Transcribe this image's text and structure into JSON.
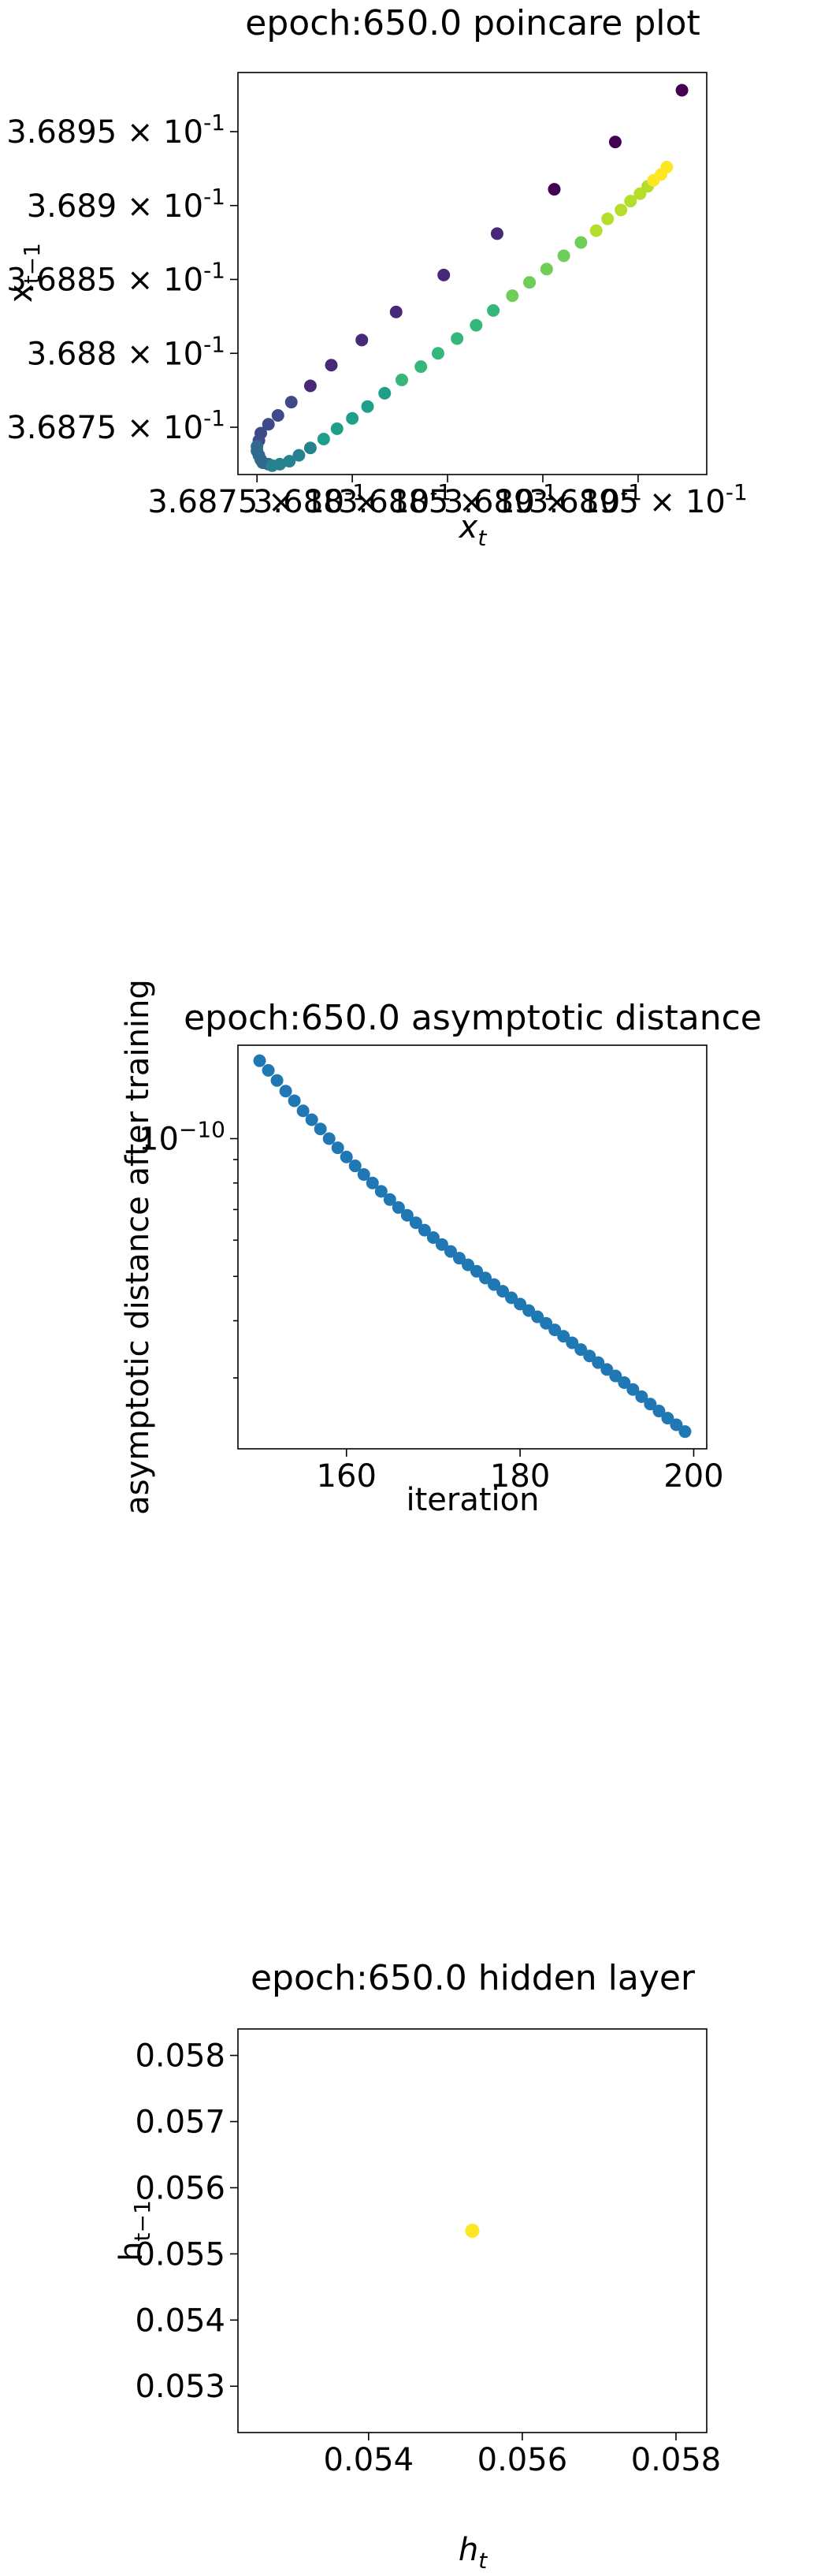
{
  "chart_data": [
    {
      "type": "scatter",
      "title": "epoch:650.0 poincare plot",
      "xlabel": "x_t",
      "ylabel": "x_{t−1}",
      "xlim": [
        0.36874,
        0.368986
      ],
      "ylim": [
        0.368718,
        0.36899
      ],
      "xticks": [
        {
          "value": 0.36875,
          "label": "3.6875 × 10^{-1}"
        },
        {
          "value": 0.3688,
          "label": "3.688 × 10^{-1}"
        },
        {
          "value": 0.36885,
          "label": "3.6885 × 10^{-1}"
        },
        {
          "value": 0.3689,
          "label": "3.689 × 10^{-1}"
        },
        {
          "value": 0.36895,
          "label": "3.6895 × 10^{-1}"
        }
      ],
      "yticks": [
        {
          "value": 0.36875,
          "label": "3.6875 × 10^{-1}"
        },
        {
          "value": 0.3688,
          "label": "3.688 × 10^{-1}"
        },
        {
          "value": 0.36885,
          "label": "3.6885 × 10^{-1}"
        },
        {
          "value": 0.3689,
          "label": "3.689 × 10^{-1}"
        },
        {
          "value": 0.36895,
          "label": "3.6895 × 10^{-1}"
        }
      ],
      "colormap": "viridis",
      "colors": [
        "#440154",
        "#482878",
        "#3e4a89",
        "#31688e",
        "#26828e",
        "#1f9e89",
        "#35b779",
        "#6ece58",
        "#b5de2b",
        "#fde725"
      ],
      "points": [
        [
          0.368973,
          0.368978
        ],
        [
          0.368938,
          0.368943
        ],
        [
          0.368906,
          0.368911
        ],
        [
          0.368876,
          0.368881
        ],
        [
          0.368848,
          0.368853
        ],
        [
          0.368823,
          0.368828
        ],
        [
          0.368805,
          0.368809
        ],
        [
          0.368789,
          0.368792
        ],
        [
          0.368778,
          0.368778
        ],
        [
          0.368768,
          0.368767
        ],
        [
          0.368761,
          0.368758
        ],
        [
          0.368756,
          0.368752
        ],
        [
          0.368752,
          0.368746
        ],
        [
          0.368751,
          0.368741
        ],
        [
          0.36875,
          0.368737
        ],
        [
          0.36875,
          0.368734
        ],
        [
          0.368751,
          0.368731
        ],
        [
          0.368752,
          0.368728
        ],
        [
          0.368753,
          0.368726
        ],
        [
          0.368756,
          0.368725
        ],
        [
          0.368758,
          0.368724
        ],
        [
          0.368762,
          0.368725
        ],
        [
          0.368767,
          0.368727
        ],
        [
          0.368772,
          0.368731
        ],
        [
          0.368778,
          0.368736
        ],
        [
          0.368785,
          0.368742
        ],
        [
          0.368792,
          0.368749
        ],
        [
          0.3688,
          0.368756
        ],
        [
          0.368808,
          0.368764
        ],
        [
          0.368817,
          0.368773
        ],
        [
          0.368826,
          0.368782
        ],
        [
          0.368836,
          0.368791
        ],
        [
          0.368845,
          0.3688
        ],
        [
          0.368855,
          0.36881
        ],
        [
          0.368865,
          0.368819
        ],
        [
          0.368874,
          0.368829
        ],
        [
          0.368884,
          0.368839
        ],
        [
          0.368893,
          0.368848
        ],
        [
          0.368902,
          0.368857
        ],
        [
          0.368911,
          0.368866
        ],
        [
          0.36892,
          0.368875
        ],
        [
          0.368928,
          0.368883
        ],
        [
          0.368934,
          0.368891
        ],
        [
          0.368941,
          0.368897
        ],
        [
          0.368946,
          0.368903
        ],
        [
          0.368951,
          0.368908
        ],
        [
          0.368955,
          0.368913
        ],
        [
          0.368958,
          0.368917
        ],
        [
          0.368962,
          0.368921
        ],
        [
          0.368965,
          0.368926
        ]
      ]
    },
    {
      "type": "scatter",
      "title": "epoch:650.0 asymptotic distance",
      "xlabel": "iteration",
      "ylabel": "asymptotic distance after training",
      "yscale": "log",
      "xlim": [
        147.5,
        201.5
      ],
      "ylim": [
        2.1e-11,
        1.6e-10
      ],
      "xticks": [
        {
          "value": 160,
          "label": "160"
        },
        {
          "value": 180,
          "label": "180"
        },
        {
          "value": 200,
          "label": "200"
        }
      ],
      "yticks": [
        {
          "value": 1e-10,
          "label": "10^{−10}"
        }
      ],
      "color": "#1f77b4",
      "x": [
        150,
        151,
        152,
        153,
        154,
        155,
        156,
        157,
        158,
        159,
        160,
        161,
        162,
        163,
        164,
        165,
        166,
        167,
        168,
        169,
        170,
        171,
        172,
        173,
        174,
        175,
        176,
        177,
        178,
        179,
        180,
        181,
        182,
        183,
        184,
        185,
        186,
        187,
        188,
        189,
        190,
        191,
        192,
        193,
        194,
        195,
        196,
        197,
        198,
        199
      ],
      "y": [
        1.48e-10,
        1.41e-10,
        1.34e-10,
        1.27e-10,
        1.21e-10,
        1.15e-10,
        1.1e-10,
        1.05e-10,
        1e-10,
        9.55e-11,
        9.12e-11,
        8.72e-11,
        8.35e-11,
        8e-11,
        7.67e-11,
        7.36e-11,
        7.07e-11,
        6.8e-11,
        6.55e-11,
        6.31e-11,
        6.08e-11,
        5.87e-11,
        5.67e-11,
        5.48e-11,
        5.3e-11,
        5.13e-11,
        4.96e-11,
        4.8e-11,
        4.64e-11,
        4.49e-11,
        4.35e-11,
        4.21e-11,
        4.08e-11,
        3.95e-11,
        3.82e-11,
        3.7e-11,
        3.58e-11,
        3.46e-11,
        3.35e-11,
        3.24e-11,
        3.13e-11,
        3.03e-11,
        2.93e-11,
        2.83e-11,
        2.73e-11,
        2.63e-11,
        2.54e-11,
        2.45e-11,
        2.37e-11,
        2.29e-11
      ]
    },
    {
      "type": "scatter",
      "title": "epoch:650.0 hidden layer",
      "xlabel": "h_t",
      "ylabel": "h_{t−1}",
      "xlim": [
        0.0523,
        0.0584
      ],
      "ylim": [
        0.0523,
        0.0584
      ],
      "xticks": [
        {
          "value": 0.054,
          "label": "0.054"
        },
        {
          "value": 0.056,
          "label": "0.056"
        },
        {
          "value": 0.058,
          "label": "0.058"
        }
      ],
      "yticks": [
        {
          "value": 0.053,
          "label": "0.053"
        },
        {
          "value": 0.054,
          "label": "0.054"
        },
        {
          "value": 0.055,
          "label": "0.055"
        },
        {
          "value": 0.056,
          "label": "0.056"
        },
        {
          "value": 0.057,
          "label": "0.057"
        },
        {
          "value": 0.058,
          "label": "0.058"
        }
      ],
      "color": "#fde725",
      "points": [
        [
          0.05535,
          0.05535
        ]
      ]
    }
  ]
}
